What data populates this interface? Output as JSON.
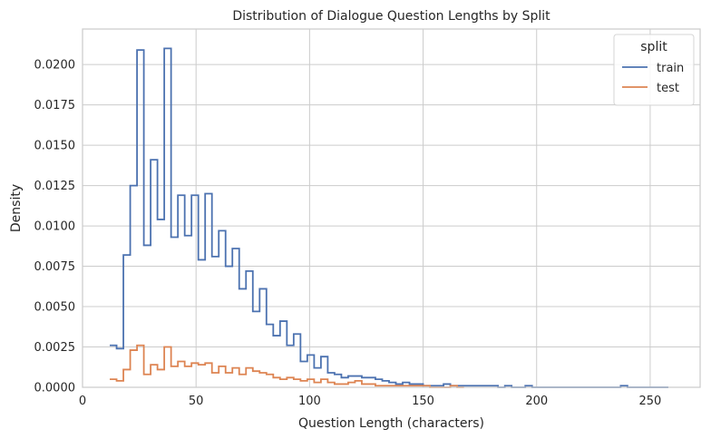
{
  "chart_data": {
    "type": "histogram-step",
    "title": "Distribution of Dialogue Question Lengths by Split",
    "xlabel": "Question Length (characters)",
    "ylabel": "Density",
    "xlim": [
      0,
      272
    ],
    "ylim": [
      0,
      0.0222
    ],
    "x_ticks": [
      0,
      50,
      100,
      150,
      200,
      250
    ],
    "x_tick_labels": [
      "0",
      "50",
      "100",
      "150",
      "200",
      "250"
    ],
    "y_ticks": [
      0,
      0.0025,
      0.005,
      0.0075,
      0.01,
      0.0125,
      0.015,
      0.0175,
      0.02
    ],
    "y_tick_labels": [
      "0.0000",
      "0.0025",
      "0.0050",
      "0.0075",
      "0.0100",
      "0.0125",
      "0.0150",
      "0.0175",
      "0.0200"
    ],
    "grid": true,
    "legend": {
      "title": "split",
      "position": "top-right",
      "entries": [
        "train",
        "test"
      ]
    },
    "series": [
      {
        "name": "train",
        "color": "#4c72b0",
        "bin_edges": [
          12,
          15,
          18,
          21,
          24,
          27,
          30,
          33,
          36,
          39,
          42,
          45,
          48,
          51,
          54,
          57,
          60,
          63,
          66,
          69,
          72,
          75,
          78,
          81,
          84,
          87,
          90,
          93,
          96,
          99,
          102,
          105,
          108,
          111,
          114,
          117,
          120,
          123,
          126,
          129,
          132,
          135,
          138,
          141,
          144,
          147,
          150,
          153,
          156,
          159,
          162,
          165,
          168,
          171,
          174,
          177,
          180,
          183,
          186,
          189,
          192,
          195,
          198,
          201,
          204,
          207,
          210,
          213,
          216,
          219,
          222,
          225,
          228,
          231,
          234,
          237,
          240,
          243,
          246,
          249,
          252,
          255,
          258
        ],
        "values": [
          0.0026,
          0.0024,
          0.0082,
          0.0125,
          0.0209,
          0.0088,
          0.0141,
          0.0104,
          0.021,
          0.0093,
          0.0119,
          0.0094,
          0.0119,
          0.0079,
          0.012,
          0.0081,
          0.0097,
          0.0075,
          0.0086,
          0.0061,
          0.0072,
          0.0047,
          0.0061,
          0.0039,
          0.0032,
          0.0041,
          0.0026,
          0.0033,
          0.0016,
          0.002,
          0.0012,
          0.0019,
          0.0009,
          0.0008,
          0.0006,
          0.0007,
          0.0007,
          0.0006,
          0.0006,
          0.0005,
          0.0004,
          0.0003,
          0.0002,
          0.0003,
          0.0002,
          0.0002,
          0.0001,
          0.0001,
          0.0001,
          0.0002,
          0.0001,
          0.0001,
          0.0001,
          0.0001,
          0.0001,
          0.0001,
          0.0001,
          0.0,
          0.0001,
          0.0,
          0.0,
          0.0001,
          0.0,
          0.0,
          0.0,
          0.0,
          0.0,
          0.0,
          0.0,
          0.0,
          0.0,
          0.0,
          0.0,
          0.0,
          0.0,
          0.0001,
          0.0,
          0.0,
          0.0,
          0.0,
          0.0,
          0.0
        ]
      },
      {
        "name": "test",
        "color": "#dd8452",
        "bin_edges": [
          12,
          15,
          18,
          21,
          24,
          27,
          30,
          33,
          36,
          39,
          42,
          45,
          48,
          51,
          54,
          57,
          60,
          63,
          66,
          69,
          72,
          75,
          78,
          81,
          84,
          87,
          90,
          93,
          96,
          99,
          102,
          105,
          108,
          111,
          114,
          117,
          120,
          123,
          126,
          129,
          132,
          135,
          138,
          141,
          144,
          147,
          150,
          153,
          156,
          159,
          162,
          165,
          168
        ],
        "values": [
          0.0005,
          0.0004,
          0.0011,
          0.0023,
          0.0026,
          0.0008,
          0.0014,
          0.0011,
          0.0025,
          0.0013,
          0.0016,
          0.0013,
          0.0015,
          0.0014,
          0.0015,
          0.0009,
          0.0013,
          0.0009,
          0.0012,
          0.0008,
          0.0012,
          0.001,
          0.0009,
          0.0008,
          0.0006,
          0.0005,
          0.0006,
          0.0005,
          0.0004,
          0.0005,
          0.0003,
          0.0005,
          0.0003,
          0.0002,
          0.0002,
          0.0003,
          0.0004,
          0.0002,
          0.0002,
          0.0001,
          0.0001,
          0.0001,
          0.0001,
          0.0001,
          0.0001,
          0.0001,
          0.0001,
          0.0,
          0.0,
          0.0,
          0.0001,
          0.0
        ]
      }
    ]
  }
}
